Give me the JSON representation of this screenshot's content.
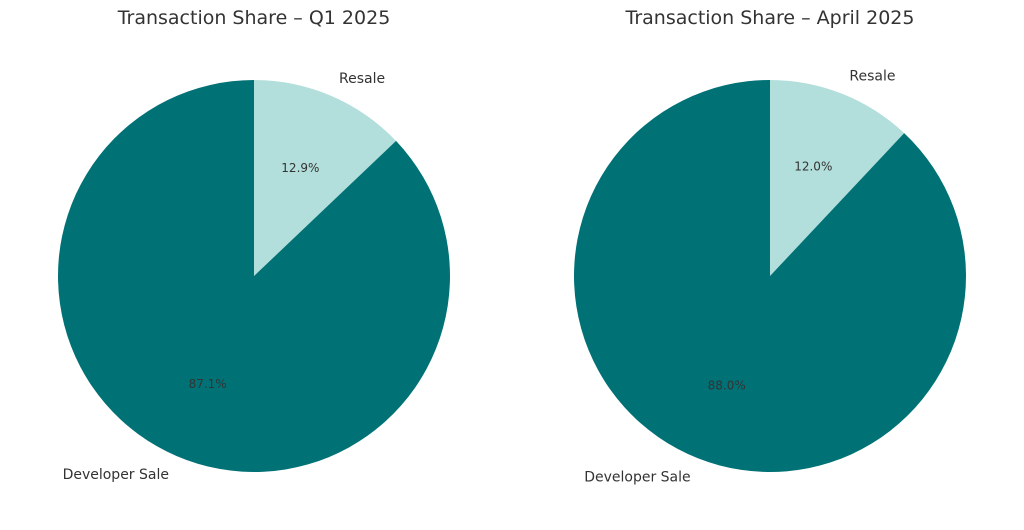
{
  "chart_data": [
    {
      "type": "pie",
      "title": "Transaction Share – Q1 2025",
      "categories": [
        "Resale",
        "Developer Sale"
      ],
      "values": [
        12.9,
        87.1
      ],
      "value_labels": [
        "12.9%",
        "87.1%"
      ],
      "colors": [
        "#b2dfdb",
        "#007276"
      ]
    },
    {
      "type": "pie",
      "title": "Transaction Share – April 2025",
      "categories": [
        "Resale",
        "Developer Sale"
      ],
      "values": [
        12.0,
        88.0
      ],
      "value_labels": [
        "12.0%",
        "88.0%"
      ],
      "colors": [
        "#b2dfdb",
        "#007276"
      ]
    }
  ]
}
